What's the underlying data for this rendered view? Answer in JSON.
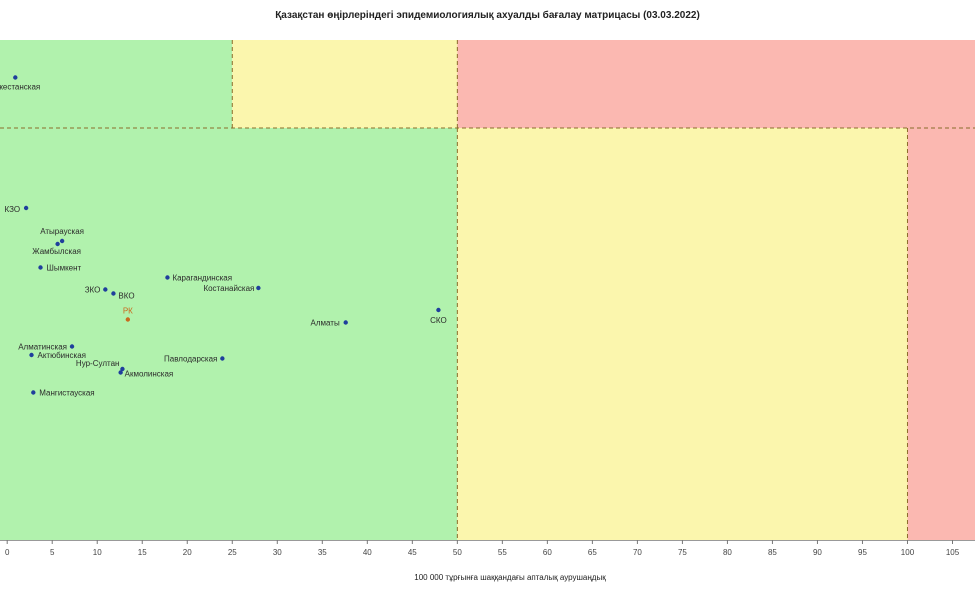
{
  "chart_data": {
    "type": "scatter",
    "title": "Қазақстан өңірлеріндегі эпидемиологиялық ахуалды бағалау матрицасы  (03.03.2022)",
    "xlabel": "100 000 тұрғынға шаққандағы апталық аурушаңдық",
    "ylabel": "",
    "xlim": [
      -0.8,
      107.5
    ],
    "ylim": [
      0,
      100
    ],
    "x_ticks": [
      0,
      5,
      10,
      15,
      20,
      25,
      30,
      35,
      40,
      45,
      50,
      55,
      60,
      65,
      70,
      75,
      80,
      85,
      90,
      95,
      100,
      105
    ],
    "grid": false,
    "zones": [
      {
        "color": "#b1f2ad",
        "x": [
          -0.8,
          25
        ],
        "y": [
          82.4,
          100
        ]
      },
      {
        "color": "#fbf6ad",
        "x": [
          25,
          50
        ],
        "y": [
          82.4,
          100
        ]
      },
      {
        "color": "#fbb8b1",
        "x": [
          50,
          107.5
        ],
        "y": [
          82.4,
          100
        ]
      },
      {
        "color": "#b1f2ad",
        "x": [
          -0.8,
          50
        ],
        "y": [
          0,
          82.4
        ]
      },
      {
        "color": "#fbf6ad",
        "x": [
          50,
          100
        ],
        "y": [
          0,
          82.4
        ]
      },
      {
        "color": "#fbb8b1",
        "x": [
          100,
          107.5
        ],
        "y": [
          0,
          82.4
        ]
      }
    ],
    "dashed_lines": {
      "vertical_top": [
        25,
        50
      ],
      "vertical_bottom": [
        50,
        100
      ],
      "horizontal_y": 82.4
    },
    "points": [
      {
        "label": "кестанская",
        "x": 0.9,
        "y": 92.5
      },
      {
        "label": "КЗО",
        "x": 2.1,
        "y": 66.4
      },
      {
        "label": "Атырауская",
        "x": 6.1,
        "y": 59.8
      },
      {
        "label": "Жамбылская",
        "x": 5.6,
        "y": 59.2
      },
      {
        "label": "Шымкент",
        "x": 3.7,
        "y": 54.5
      },
      {
        "label": "Карагандинская",
        "x": 17.8,
        "y": 52.5
      },
      {
        "label": "Костанайская",
        "x": 27.9,
        "y": 50.4
      },
      {
        "label": "ЗКО",
        "x": 10.9,
        "y": 50.1
      },
      {
        "label": "ВКО",
        "x": 11.8,
        "y": 49.3
      },
      {
        "label": "СКО",
        "x": 47.9,
        "y": 46.0
      },
      {
        "label": "РК",
        "x": 13.4,
        "y": 44.1
      },
      {
        "label": "Алматы",
        "x": 37.6,
        "y": 43.5
      },
      {
        "label": "Алматинская",
        "x": 7.2,
        "y": 38.7
      },
      {
        "label": "Актюбинская",
        "x": 2.7,
        "y": 37.0
      },
      {
        "label": "Павлодарская",
        "x": 23.9,
        "y": 36.3
      },
      {
        "label": "Нур-Султан",
        "x": 12.8,
        "y": 34.2
      },
      {
        "label": "Акмолинская",
        "x": 12.6,
        "y": 33.5
      },
      {
        "label": "Мангистауская",
        "x": 2.9,
        "y": 29.5
      }
    ]
  }
}
